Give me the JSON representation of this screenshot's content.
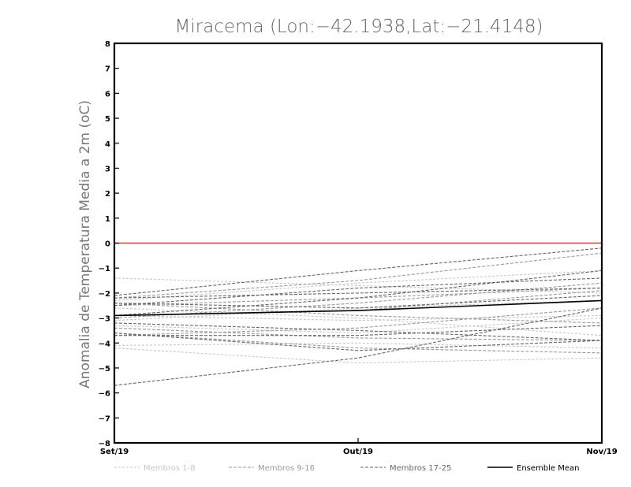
{
  "chart_data": {
    "type": "line",
    "title": "Miracema (Lon:−42.1938,Lat:−21.4148)",
    "xlabel": "",
    "ylabel": "Anomalia de Temperatura Media a 2m (oC)",
    "categories": [
      "Set/19",
      "Out/19",
      "Nov/19"
    ],
    "ylim": [
      -8,
      8
    ],
    "yticks": [
      "8",
      "7",
      "6",
      "5",
      "4",
      "3",
      "2",
      "1",
      "0",
      "−1",
      "−2",
      "−3",
      "−4",
      "−5",
      "−6",
      "−7",
      "−8"
    ],
    "yticks_values": [
      8,
      7,
      6,
      5,
      4,
      3,
      2,
      1,
      0,
      -1,
      -2,
      -3,
      -4,
      -5,
      -6,
      -7,
      -8
    ],
    "reference_line": {
      "value": 0,
      "color": "#ee3322"
    },
    "groups": [
      {
        "name": "Membros 1-8",
        "color": "#c8c8c8",
        "dash": "3,2",
        "members": [
          [
            -1.4,
            -1.7,
            -2.0
          ],
          [
            -2.3,
            -1.6,
            -1.1
          ],
          [
            -2.9,
            -3.1,
            -2.9
          ],
          [
            -3.3,
            -3.6,
            -3.0
          ],
          [
            -4.1,
            -4.0,
            -4.2
          ],
          [
            -4.2,
            -4.8,
            -4.6
          ],
          [
            -3.1,
            -2.6,
            -2.3
          ],
          [
            -2.6,
            -3.0,
            -3.7
          ]
        ]
      },
      {
        "name": "Membros 9-16",
        "color": "#9a9a9a",
        "dash": "4,2",
        "members": [
          [
            -2.2,
            -1.5,
            -0.4
          ],
          [
            -2.5,
            -2.2,
            -1.8
          ],
          [
            -3.7,
            -3.4,
            -2.6
          ],
          [
            -2.4,
            -2.9,
            -3.2
          ],
          [
            -3.4,
            -3.8,
            -3.9
          ],
          [
            -2.9,
            -2.7,
            -1.9
          ],
          [
            -3.0,
            -2.4,
            -1.6
          ],
          [
            -3.6,
            -4.2,
            -4.4
          ]
        ]
      },
      {
        "name": "Membros 17-25",
        "color": "#666666",
        "dash": "4,2",
        "members": [
          [
            -5.7,
            -4.6,
            -2.6
          ],
          [
            -2.1,
            -1.1,
            -0.2
          ],
          [
            -2.9,
            -2.2,
            -1.1
          ],
          [
            -3.6,
            -4.3,
            -3.9
          ],
          [
            -2.4,
            -2.6,
            -2.1
          ],
          [
            -2.2,
            -2.0,
            -1.8
          ],
          [
            -3.7,
            -3.7,
            -3.3
          ],
          [
            -2.5,
            -1.8,
            -1.4
          ],
          [
            -3.2,
            -3.5,
            -3.9
          ]
        ]
      },
      {
        "name": "Ensemble Mean",
        "color": "#000000",
        "dash": "",
        "members": [
          [
            -2.9,
            -2.7,
            -2.3
          ]
        ]
      }
    ],
    "legend": [
      {
        "label": "Membros 1-8",
        "color": "#c8c8c8",
        "dash": "3,2"
      },
      {
        "label": "Membros 9-16",
        "color": "#9a9a9a",
        "dash": "4,2"
      },
      {
        "label": "Membros 17-25",
        "color": "#666666",
        "dash": "4,2"
      },
      {
        "label": "Ensemble Mean",
        "color": "#000000",
        "dash": ""
      }
    ]
  }
}
